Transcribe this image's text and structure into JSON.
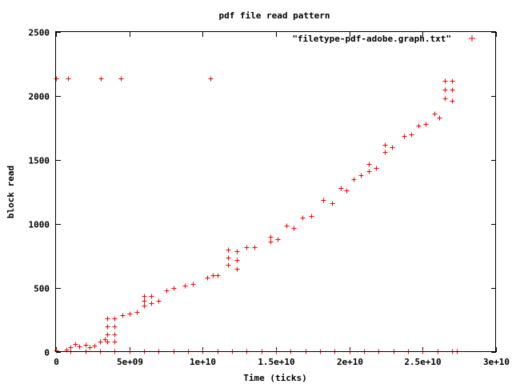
{
  "chart_data": {
    "type": "scatter",
    "title": "pdf file read pattern",
    "xlabel": "Time (ticks)",
    "ylabel": "block read",
    "xlim": [
      0,
      30000000000
    ],
    "ylim": [
      0,
      2500
    ],
    "x_ticks": [
      {
        "value": 0,
        "label": "0"
      },
      {
        "value": 5000000000,
        "label": "5e+09"
      },
      {
        "value": 10000000000,
        "label": "1e+10"
      },
      {
        "value": 15000000000,
        "label": "1.5e+10"
      },
      {
        "value": 20000000000,
        "label": "2e+10"
      },
      {
        "value": 25000000000,
        "label": "2.5e+10"
      },
      {
        "value": 30000000000,
        "label": "3e+10"
      }
    ],
    "y_ticks": [
      {
        "value": 0,
        "label": "0"
      },
      {
        "value": 500,
        "label": "500"
      },
      {
        "value": 1000,
        "label": "1000"
      },
      {
        "value": 1500,
        "label": "1500"
      },
      {
        "value": 2000,
        "label": "2000"
      },
      {
        "value": 2500,
        "label": "2500"
      }
    ],
    "legend": {
      "label": "\"filetype-pdf-adobe.graph.txt\"",
      "position": "top-right",
      "color": "#ff0000",
      "marker": "plus"
    },
    "grid": false,
    "series": [
      {
        "name": "\"filetype-pdf-adobe.graph.txt\"",
        "color": "#ff0000",
        "marker": "plus",
        "points": [
          [
            0,
            2135
          ],
          [
            800000000,
            2135
          ],
          [
            3050000000,
            2135
          ],
          [
            4400000000,
            2135
          ],
          [
            10500000000,
            2135
          ],
          [
            0,
            10
          ],
          [
            1000000000,
            5
          ],
          [
            2000000000,
            5
          ],
          [
            3000000000,
            5
          ],
          [
            4000000000,
            5
          ],
          [
            5000000000,
            5
          ],
          [
            6000000000,
            5
          ],
          [
            7000000000,
            5
          ],
          [
            8000000000,
            5
          ],
          [
            9000000000,
            5
          ],
          [
            10000000000,
            5
          ],
          [
            11000000000,
            5
          ],
          [
            12000000000,
            5
          ],
          [
            13000000000,
            5
          ],
          [
            14000000000,
            5
          ],
          [
            15000000000,
            5
          ],
          [
            16000000000,
            5
          ],
          [
            17000000000,
            5
          ],
          [
            18000000000,
            5
          ],
          [
            19000000000,
            5
          ],
          [
            20000000000,
            5
          ],
          [
            21000000000,
            5
          ],
          [
            22000000000,
            5
          ],
          [
            23000000000,
            5
          ],
          [
            24000000000,
            5
          ],
          [
            25000000000,
            5
          ],
          [
            26000000000,
            5
          ],
          [
            27000000000,
            5
          ],
          [
            27300000000,
            5
          ],
          [
            700000000,
            20
          ],
          [
            1000000000,
            40
          ],
          [
            1300000000,
            60
          ],
          [
            1600000000,
            45
          ],
          [
            2000000000,
            55
          ],
          [
            2300000000,
            40
          ],
          [
            2600000000,
            50
          ],
          [
            3000000000,
            80
          ],
          [
            3300000000,
            100
          ],
          [
            3500000000,
            260
          ],
          [
            3500000000,
            200
          ],
          [
            3500000000,
            140
          ],
          [
            3500000000,
            80
          ],
          [
            4000000000,
            260
          ],
          [
            4000000000,
            200
          ],
          [
            4000000000,
            140
          ],
          [
            4000000000,
            80
          ],
          [
            4500000000,
            290
          ],
          [
            5000000000,
            300
          ],
          [
            5500000000,
            310
          ],
          [
            6000000000,
            440
          ],
          [
            6000000000,
            400
          ],
          [
            6000000000,
            360
          ],
          [
            6500000000,
            440
          ],
          [
            6500000000,
            380
          ],
          [
            7000000000,
            400
          ],
          [
            7500000000,
            480
          ],
          [
            8000000000,
            500
          ],
          [
            8800000000,
            520
          ],
          [
            9300000000,
            530
          ],
          [
            10300000000,
            580
          ],
          [
            10700000000,
            600
          ],
          [
            11000000000,
            600
          ],
          [
            11700000000,
            800
          ],
          [
            11700000000,
            740
          ],
          [
            11700000000,
            680
          ],
          [
            12300000000,
            790
          ],
          [
            12300000000,
            720
          ],
          [
            12300000000,
            650
          ],
          [
            13000000000,
            820
          ],
          [
            13500000000,
            820
          ],
          [
            14600000000,
            900
          ],
          [
            14600000000,
            860
          ],
          [
            15100000000,
            880
          ],
          [
            15700000000,
            990
          ],
          [
            16200000000,
            970
          ],
          [
            16800000000,
            1050
          ],
          [
            17400000000,
            1060
          ],
          [
            18200000000,
            1190
          ],
          [
            18800000000,
            1160
          ],
          [
            19400000000,
            1280
          ],
          [
            19800000000,
            1260
          ],
          [
            20300000000,
            1350
          ],
          [
            20800000000,
            1380
          ],
          [
            21300000000,
            1470
          ],
          [
            21300000000,
            1410
          ],
          [
            21800000000,
            1440
          ],
          [
            22400000000,
            1620
          ],
          [
            22400000000,
            1560
          ],
          [
            22900000000,
            1600
          ],
          [
            23700000000,
            1690
          ],
          [
            24200000000,
            1700
          ],
          [
            24700000000,
            1770
          ],
          [
            25200000000,
            1780
          ],
          [
            25800000000,
            1860
          ],
          [
            26100000000,
            1830
          ],
          [
            26500000000,
            2120
          ],
          [
            26500000000,
            2050
          ],
          [
            26500000000,
            1980
          ],
          [
            27000000000,
            2120
          ],
          [
            27000000000,
            2050
          ],
          [
            27000000000,
            1960
          ]
        ]
      }
    ]
  }
}
